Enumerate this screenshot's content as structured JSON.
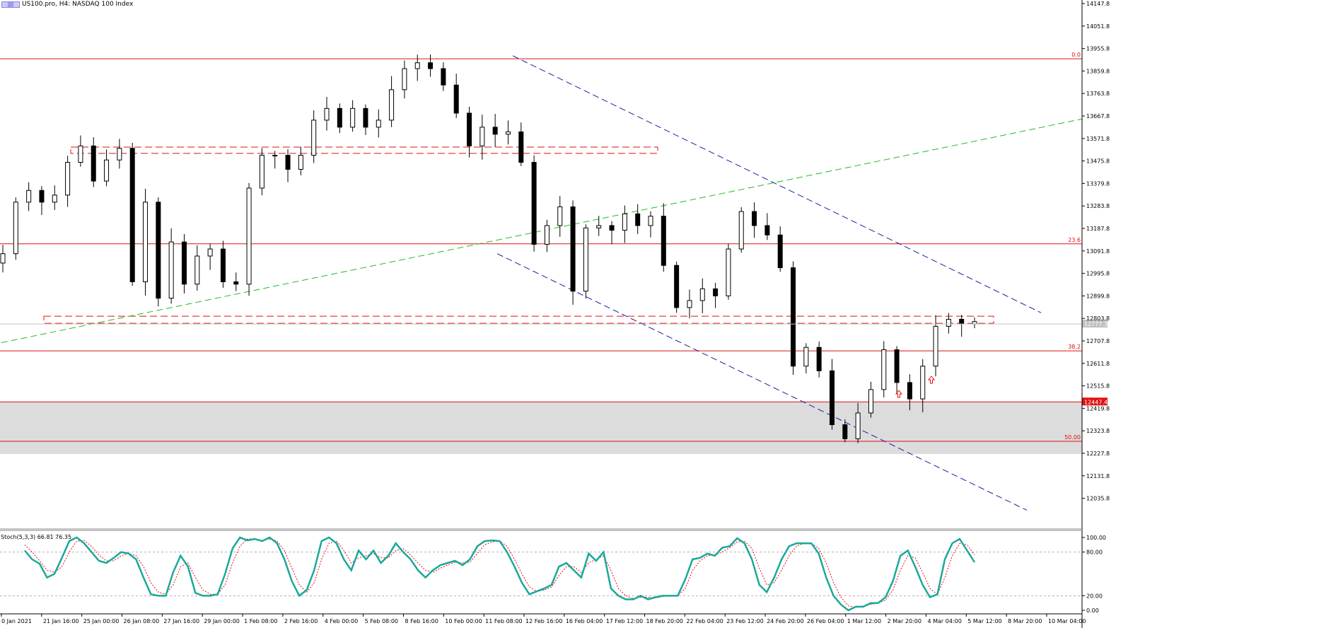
{
  "header": {
    "title": "US100.pro, H4:  NASDAQ 100 Index"
  },
  "chart_data": {
    "type": "candlestick",
    "symbol": "US100.pro",
    "timeframe": "H4",
    "description": "NASDAQ 100 Index",
    "price_axis": {
      "range": [
        12000,
        14147
      ],
      "ticks": [
        "14147.8",
        "14051.8",
        "13955.8",
        "13859.8",
        "13763.8",
        "13667.8",
        "13571.8",
        "13475.8",
        "13379.8",
        "13283.8",
        "13187.8",
        "13091.8",
        "12995.8",
        "12899.8",
        "12803.8",
        "12707.8",
        "12611.8",
        "12515.8",
        "12419.8",
        "12323.8",
        "12227.8",
        "12131.8",
        "12035.8"
      ]
    },
    "time_labels": [
      "0 Jan 2021",
      "21 Jan 16:00",
      "25 Jan 00:00",
      "26 Jan 08:00",
      "27 Jan 16:00",
      "29 Jan 00:00",
      "1 Feb 08:00",
      "2 Feb 16:00",
      "4 Feb 00:00",
      "5 Feb 08:00",
      "8 Feb 16:00",
      "10 Feb 00:00",
      "11 Feb 08:00",
      "12 Feb 16:00",
      "16 Feb 04:00",
      "17 Feb 12:00",
      "18 Feb 20:00",
      "22 Feb 04:00",
      "23 Feb 12:00",
      "24 Feb 20:00",
      "26 Feb 04:00",
      "1 Mar 12:00",
      "2 Mar 20:00",
      "4 Mar 04:00",
      "5 Mar 12:00",
      "8 Mar 20:00",
      "10 Mar 04:00"
    ],
    "current_price_label": "12777.3",
    "fib_levels": [
      {
        "label": "0.0",
        "price": 13912
      },
      {
        "label": "23.6",
        "price": 13122
      },
      {
        "label": "38.2",
        "price": 12665
      },
      {
        "label": "50.00",
        "price": 12279
      }
    ],
    "support_level": {
      "label": "12447.4",
      "price": 12447.4
    },
    "support_zone": {
      "top": 12447.4,
      "bottom": 12225
    },
    "dashed_zones": [
      {
        "top": 13535,
        "bottom": 13508,
        "from": "21 Jan",
        "to": "18 Feb"
      },
      {
        "top": 12813,
        "bottom": 12783,
        "from": "19 Jan",
        "to": "10 Mar"
      }
    ],
    "trendlines": [
      {
        "name": "upper channel",
        "color": "#1e1ea0",
        "style": "dashed",
        "from": {
          "t": "16 Feb",
          "p": 13925
        },
        "to": {
          "t": "10 Mar",
          "p": 12828
        }
      },
      {
        "name": "lower channel",
        "color": "#1e1ea0",
        "style": "dashed",
        "from": {
          "t": "12 Feb",
          "p": 13080
        },
        "to": {
          "t": "10 Mar",
          "p": 11985
        }
      },
      {
        "name": "rising support",
        "color": "#22bb22",
        "style": "dashed",
        "from": {
          "t": "19 Jan",
          "p": 12700
        },
        "to": {
          "t": "10 Mar",
          "p": 13655
        }
      }
    ],
    "close_path": [
      13080,
      13300,
      13350,
      13300,
      13330,
      13470,
      13540,
      13390,
      13480,
      13530,
      12960,
      13300,
      12890,
      13130,
      12950,
      13070,
      13100,
      12960,
      12950,
      13360,
      13500,
      13500,
      13440,
      13500,
      13650,
      13700,
      13620,
      13700,
      13620,
      13650,
      13780,
      13870,
      13895,
      13870,
      13800,
      13680,
      13540,
      13620,
      13590,
      13600,
      13470,
      13120,
      13200,
      13280,
      12920,
      13190,
      13200,
      13180,
      13250,
      13200,
      13240,
      13030,
      12850,
      12880,
      12930,
      12900,
      13100,
      13260,
      13200,
      13160,
      13020,
      12600,
      12680,
      12580,
      12350,
      12290,
      12400,
      12500,
      12670,
      12530,
      12460,
      12600,
      12770,
      12800,
      12780,
      12790
    ],
    "stochastic": {
      "title": "Stoch(5,3,3) 66.81 76.35",
      "params": "5,3,3",
      "main_value": 66.81,
      "signal_value": 76.35,
      "range": [
        0,
        100
      ],
      "levels": [
        "100.00",
        "80.00",
        "20.00",
        "0.00"
      ],
      "main": [
        82,
        70,
        64,
        45,
        50,
        72,
        95,
        100,
        92,
        80,
        68,
        65,
        72,
        80,
        78,
        70,
        45,
        22,
        20,
        20,
        52,
        75,
        60,
        24,
        20,
        20,
        22,
        50,
        85,
        100,
        96,
        98,
        95,
        100,
        92,
        70,
        40,
        20,
        28,
        55,
        95,
        100,
        92,
        70,
        55,
        82,
        70,
        82,
        65,
        75,
        92,
        80,
        70,
        55,
        45,
        55,
        62,
        65,
        68,
        62,
        70,
        88,
        95,
        96,
        95,
        80,
        60,
        38,
        22,
        26,
        30,
        35,
        60,
        65,
        55,
        45,
        78,
        68,
        80,
        30,
        20,
        15,
        15,
        20,
        15,
        18,
        20,
        20,
        20,
        42,
        70,
        72,
        78,
        75,
        86,
        88,
        99,
        92,
        70,
        35,
        25,
        45,
        70,
        88,
        92,
        92,
        92,
        78,
        45,
        20,
        8,
        0,
        5,
        5,
        10,
        10,
        18,
        40,
        75,
        82,
        60,
        35,
        18,
        22,
        70,
        92,
        98,
        82,
        66
      ],
      "signal": [
        90,
        80,
        68,
        55,
        52,
        60,
        80,
        95,
        96,
        88,
        76,
        68,
        68,
        75,
        78,
        75,
        60,
        38,
        25,
        22,
        35,
        60,
        65,
        45,
        28,
        22,
        22,
        35,
        65,
        88,
        98,
        98,
        96,
        98,
        95,
        82,
        58,
        35,
        25,
        38,
        70,
        92,
        95,
        82,
        65,
        72,
        75,
        78,
        72,
        72,
        82,
        85,
        76,
        65,
        55,
        52,
        58,
        62,
        66,
        65,
        66,
        78,
        90,
        94,
        95,
        88,
        70,
        50,
        32,
        26,
        28,
        32,
        48,
        60,
        60,
        52,
        65,
        70,
        75,
        55,
        30,
        20,
        16,
        18,
        18,
        17,
        19,
        20,
        20,
        30,
        55,
        68,
        75,
        76,
        80,
        86,
        94,
        95,
        85,
        58,
        35,
        38,
        55,
        75,
        88,
        92,
        92,
        85,
        65,
        38,
        18,
        6,
        4,
        6,
        8,
        10,
        14,
        28,
        55,
        75,
        72,
        52,
        30,
        22,
        45,
        75,
        92,
        90,
        76
      ]
    }
  }
}
